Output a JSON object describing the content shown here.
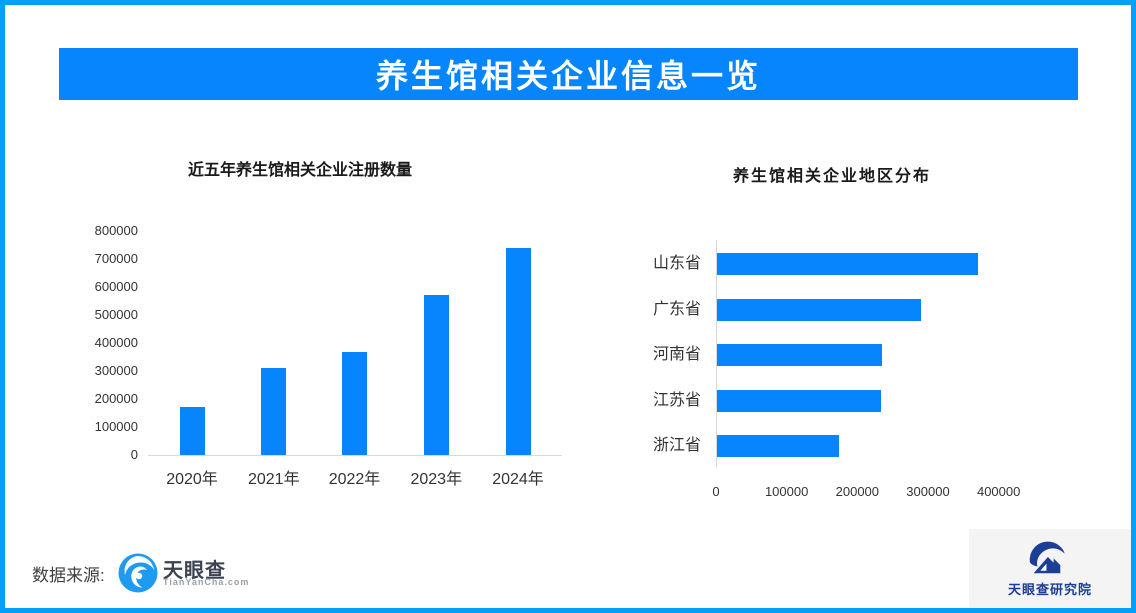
{
  "page": {
    "border_color": "#02A0F8",
    "background": "#FFFFFF",
    "panel_gray": "#F4F4F4",
    "axis_line_color": "#D9D9D9"
  },
  "header": {
    "title": "养生馆相关企业信息一览",
    "bg_color": "#0685FC",
    "text_color": "#FFFFFF"
  },
  "chart_data": [
    {
      "type": "bar",
      "orientation": "vertical",
      "title": "近五年养生馆相关企业注册数量",
      "categories": [
        "2020年",
        "2021年",
        "2022年",
        "2023年",
        "2024年"
      ],
      "values": [
        170000,
        310000,
        368000,
        570000,
        740000
      ],
      "xlabel": "",
      "ylabel": "",
      "ylim": [
        0,
        800000
      ],
      "yticks": [
        0,
        100000,
        200000,
        300000,
        400000,
        500000,
        600000,
        700000,
        800000
      ],
      "grid": false,
      "legend": "none",
      "bar_color": "#0685FC"
    },
    {
      "type": "bar",
      "orientation": "horizontal",
      "title": "养生馆相关企业地区分布",
      "categories": [
        "山东省",
        "广东省",
        "河南省",
        "江苏省",
        "浙江省"
      ],
      "values": [
        370000,
        288000,
        234000,
        232000,
        173000
      ],
      "xlabel": "",
      "ylabel": "",
      "xlim": [
        0,
        400000
      ],
      "xticks": [
        0,
        100000,
        200000,
        300000,
        400000
      ],
      "grid": false,
      "legend": "none",
      "bar_color": "#0685FC"
    }
  ],
  "footer": {
    "source_label": "数据来源:",
    "tianyancha_logo": {
      "text": "天眼查",
      "subtext": "TianYanCha.com",
      "icon_color": "#1E9BF0"
    },
    "research_logo": {
      "text": "天眼查研究院",
      "color": "#1D3E96"
    }
  }
}
